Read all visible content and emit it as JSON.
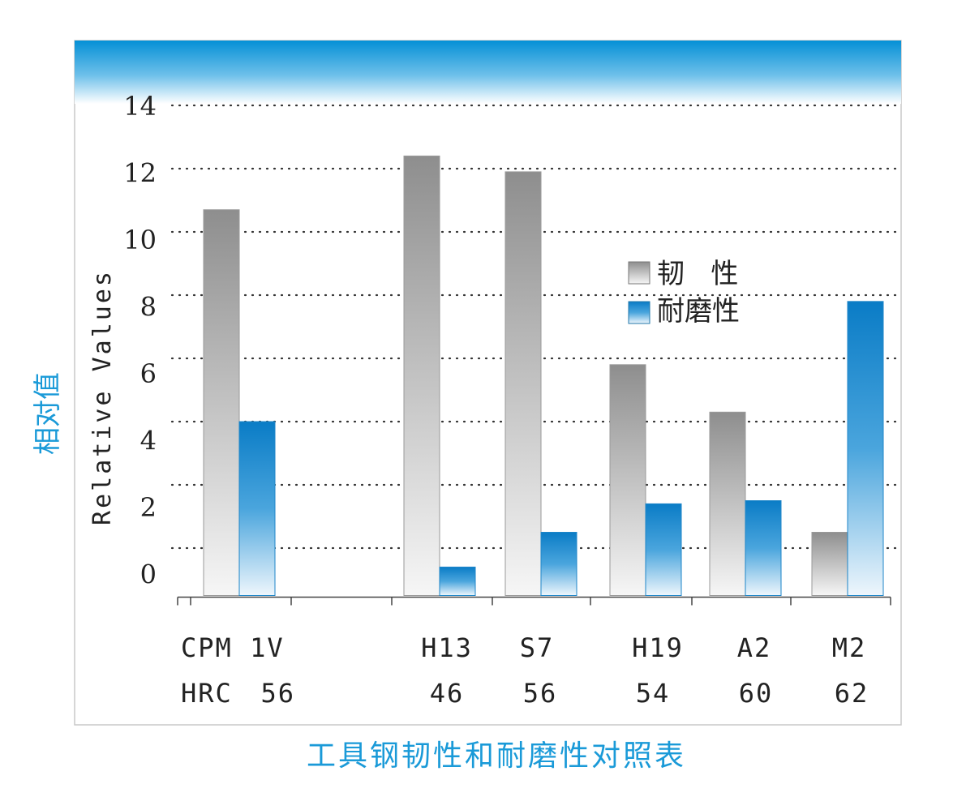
{
  "chart_data": {
    "type": "bar",
    "title": "工具钢韧性和耐磨性对照表",
    "ylabel": "Relative Values",
    "ylabel_cn": "相对值",
    "yticks": [
      "14",
      "12",
      "10",
      "8",
      "6",
      "4",
      "2",
      "0"
    ],
    "ylim": [
      -1.5,
      14
    ],
    "grid": true,
    "legend_position": "top-right",
    "categories": [
      "CPM 1V",
      "H13",
      "S7",
      "H19",
      "A2",
      "M2"
    ],
    "hardness_label": "HRC",
    "hardness_values": [
      "56",
      "46",
      "56",
      "54",
      "60",
      "62"
    ],
    "series": [
      {
        "name": "韧   性",
        "values": [
          10.7,
          12.4,
          11.9,
          5.8,
          4.3,
          0.5
        ]
      },
      {
        "name": "耐磨性",
        "values": [
          4.0,
          -0.6,
          0.5,
          1.4,
          1.5,
          7.8
        ]
      }
    ],
    "colors": {
      "header_band": "#0590d6",
      "accent_text": "#1a9ad8",
      "toughness_top": "#8e8e8e",
      "toughness_bottom": "#f6f6f6",
      "wear_top": "#0a7cc6",
      "wear_bottom": "#eef6fc"
    }
  }
}
